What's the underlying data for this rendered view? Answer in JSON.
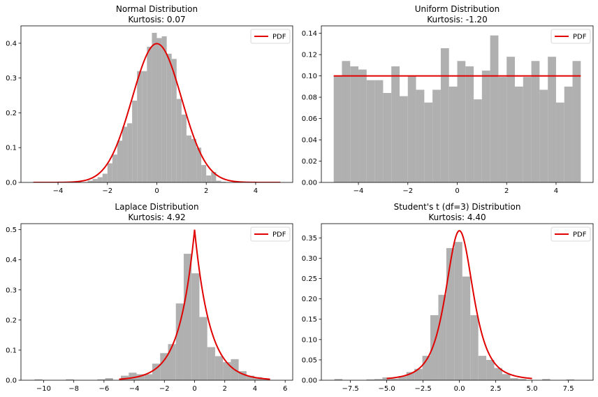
{
  "figure": {
    "background": "#ffffff"
  },
  "chart_data": [
    {
      "type": "histogram",
      "title": "Normal Distribution",
      "subtitle": "Kurtosis: 0.07",
      "xlim": [
        -5.5,
        5.5
      ],
      "ylim": [
        0,
        0.45
      ],
      "xticks": [
        -4,
        -2,
        0,
        2,
        4
      ],
      "xtick_labels": [
        "−4",
        "−2",
        "0",
        "2",
        "4"
      ],
      "yticks": [
        0,
        0.1,
        0.2,
        0.3,
        0.4
      ],
      "ytick_labels": [
        "0.0",
        "0.1",
        "0.2",
        "0.3",
        "0.4"
      ],
      "grid": false,
      "legend": {
        "position": "top-right",
        "entries": [
          "PDF"
        ]
      },
      "bin_edges": [
        -2.8,
        -2.6,
        -2.4,
        -2.2,
        -2.0,
        -1.8,
        -1.6,
        -1.4,
        -1.2,
        -1.0,
        -0.8,
        -0.6,
        -0.4,
        -0.2,
        0.0,
        0.2,
        0.4,
        0.6,
        0.8,
        1.0,
        1.2,
        1.4,
        1.6,
        1.8,
        2.0,
        2.2,
        2.4,
        2.6,
        2.8
      ],
      "counts": [
        0.005,
        0.01,
        0.015,
        0.025,
        0.055,
        0.08,
        0.12,
        0.16,
        0.17,
        0.235,
        0.32,
        0.32,
        0.39,
        0.43,
        0.415,
        0.42,
        0.37,
        0.355,
        0.24,
        0.195,
        0.135,
        0.125,
        0.1,
        0.05,
        0.02,
        0.03,
        0.005,
        0.002
      ],
      "pdf": {
        "name": "PDF",
        "kind": "normal",
        "x_range": [
          -5,
          5
        ],
        "color": "#e00000"
      },
      "bar_color": "#b0b0b0"
    },
    {
      "type": "histogram",
      "title": "Uniform Distribution",
      "subtitle": "Kurtosis: -1.20",
      "xlim": [
        -5.5,
        5.5
      ],
      "ylim": [
        0,
        0.147
      ],
      "xticks": [
        -4,
        -2,
        0,
        2,
        4
      ],
      "xtick_labels": [
        "−4",
        "−2",
        "0",
        "2",
        "4"
      ],
      "yticks": [
        0,
        0.02,
        0.04,
        0.06,
        0.08,
        0.1,
        0.12,
        0.14
      ],
      "ytick_labels": [
        "0.00",
        "0.02",
        "0.04",
        "0.06",
        "0.08",
        "0.10",
        "0.12",
        "0.14"
      ],
      "grid": false,
      "legend": {
        "position": "top-right",
        "entries": [
          "PDF"
        ]
      },
      "bin_edges": [
        -5.0,
        -4.667,
        -4.333,
        -4.0,
        -3.667,
        -3.333,
        -3.0,
        -2.667,
        -2.333,
        -2.0,
        -1.667,
        -1.333,
        -1.0,
        -0.667,
        -0.333,
        0.0,
        0.333,
        0.667,
        1.0,
        1.333,
        1.667,
        2.0,
        2.333,
        2.667,
        3.0,
        3.333,
        3.667,
        4.0,
        4.333,
        4.667,
        5.0
      ],
      "counts": [
        0.1,
        0.114,
        0.109,
        0.106,
        0.096,
        0.096,
        0.084,
        0.109,
        0.081,
        0.1,
        0.087,
        0.075,
        0.087,
        0.126,
        0.09,
        0.114,
        0.109,
        0.078,
        0.105,
        0.138,
        0.099,
        0.118,
        0.09,
        0.099,
        0.114,
        0.087,
        0.118,
        0.075,
        0.09,
        0.114
      ],
      "pdf": {
        "name": "PDF",
        "kind": "uniform",
        "x_range": [
          -5,
          5
        ],
        "color": "#e00000"
      },
      "bar_color": "#b0b0b0"
    },
    {
      "type": "histogram",
      "title": "Laplace Distribution",
      "subtitle": "Kurtosis: 4.92",
      "xlim": [
        -11.5,
        6.5
      ],
      "ylim": [
        0,
        0.52
      ],
      "xticks": [
        -10,
        -8,
        -6,
        -4,
        -2,
        0,
        2,
        4,
        6
      ],
      "xtick_labels": [
        "−10",
        "−8",
        "−6",
        "−4",
        "−2",
        "0",
        "2",
        "4",
        "6"
      ],
      "yticks": [
        0,
        0.1,
        0.2,
        0.3,
        0.4,
        0.5
      ],
      "ytick_labels": [
        "0.0",
        "0.1",
        "0.2",
        "0.3",
        "0.4",
        "0.5"
      ],
      "grid": false,
      "legend": {
        "position": "top-right",
        "entries": [
          "PDF"
        ]
      },
      "bin_edges": [
        -10.6,
        -10.08,
        -9.56,
        -9.04,
        -8.52,
        -8.0,
        -7.48,
        -6.96,
        -6.44,
        -5.92,
        -5.4,
        -4.88,
        -4.36,
        -3.84,
        -3.32,
        -2.8,
        -2.28,
        -1.76,
        -1.24,
        -0.72,
        -0.2,
        0.32,
        0.84,
        1.36,
        1.88,
        2.4,
        2.92,
        3.44,
        3.96,
        4.48,
        5.0
      ],
      "counts": [
        0.003,
        0.0,
        0.0,
        0.0,
        0.003,
        0.0,
        0.0,
        0.0,
        0.003,
        0.007,
        0.0,
        0.015,
        0.025,
        0.02,
        0.02,
        0.055,
        0.09,
        0.12,
        0.255,
        0.42,
        0.355,
        0.21,
        0.11,
        0.08,
        0.06,
        0.07,
        0.03,
        0.015,
        0.01,
        0.003
      ],
      "pdf": {
        "name": "PDF",
        "kind": "laplace",
        "x_range": [
          -5,
          5
        ],
        "color": "#e00000"
      },
      "bar_color": "#b0b0b0"
    },
    {
      "type": "histogram",
      "title": "Student's t (df=3) Distribution",
      "subtitle": "Kurtosis: 4.40",
      "xlim": [
        -9.5,
        9.2
      ],
      "ylim": [
        0,
        0.385
      ],
      "xticks": [
        -7.5,
        -5.0,
        -2.5,
        0.0,
        2.5,
        5.0,
        7.5
      ],
      "xtick_labels": [
        "−7.5",
        "−5.0",
        "−2.5",
        "0.0",
        "2.5",
        "5.0",
        "7.5"
      ],
      "yticks": [
        0,
        0.05,
        0.1,
        0.15,
        0.2,
        0.25,
        0.3,
        0.35
      ],
      "ytick_labels": [
        "0.00",
        "0.05",
        "0.10",
        "0.15",
        "0.20",
        "0.25",
        "0.30",
        "0.35"
      ],
      "grid": false,
      "legend": {
        "position": "top-right",
        "entries": [
          "PDF"
        ]
      },
      "bin_edges": [
        -8.6,
        -8.05,
        -7.5,
        -6.95,
        -6.4,
        -5.85,
        -5.3,
        -4.75,
        -4.2,
        -3.65,
        -3.1,
        -2.55,
        -2.0,
        -1.45,
        -0.9,
        -0.35,
        0.2,
        0.75,
        1.3,
        1.85,
        2.4,
        2.95,
        3.5,
        4.05,
        4.6,
        5.15,
        5.7,
        6.25,
        6.8,
        7.35,
        7.9
      ],
      "counts": [
        0.003,
        0.0,
        0.0,
        0.0,
        0.002,
        0.003,
        0.007,
        0.004,
        0.01,
        0.02,
        0.028,
        0.06,
        0.16,
        0.21,
        0.325,
        0.34,
        0.255,
        0.16,
        0.06,
        0.05,
        0.03,
        0.015,
        0.005,
        0.003,
        0.0,
        0.0,
        0.003,
        0.0,
        0.0,
        0.002
      ],
      "pdf": {
        "name": "PDF",
        "kind": "student_t3",
        "x_range": [
          -5,
          5
        ],
        "color": "#e00000"
      },
      "bar_color": "#b0b0b0"
    }
  ]
}
